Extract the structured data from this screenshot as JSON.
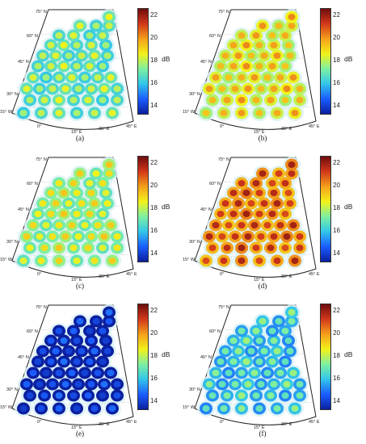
{
  "panels": [
    {
      "label": "(a)",
      "colormap_level": 0.52,
      "unit": "dB",
      "ticks": [
        "22",
        "20",
        "18",
        "16",
        "14"
      ],
      "lat_labels": [
        "75° N",
        "60° N",
        "45° N",
        "30° N",
        "15° W"
      ],
      "lon_labels": [
        "0°",
        "15° E",
        "30° E",
        "45° E"
      ]
    },
    {
      "label": "(b)",
      "colormap_level": 0.7,
      "unit": "dB",
      "ticks": [
        "22",
        "20",
        "18",
        "16",
        "14"
      ],
      "lat_labels": [
        "75° N",
        "60° N",
        "45° N",
        "30° N",
        "15° W"
      ],
      "lon_labels": [
        "0°",
        "15° E",
        "30° E",
        "45° E"
      ]
    },
    {
      "label": "(c)",
      "colormap_level": 0.6,
      "unit": "dB",
      "ticks": [
        "22",
        "20",
        "18",
        "16",
        "14"
      ],
      "lat_labels": [
        "75° N",
        "60° N",
        "45° N",
        "30° N",
        "15° W"
      ],
      "lon_labels": [
        "0°",
        "15° E",
        "30° E",
        "45° E"
      ]
    },
    {
      "label": "(d)",
      "colormap_level": 0.88,
      "unit": "dB",
      "ticks": [
        "22",
        "20",
        "18",
        "16",
        "14"
      ],
      "lat_labels": [
        "75° N",
        "60° N",
        "45° N",
        "30° N",
        "15° W"
      ],
      "lon_labels": [
        "0°",
        "15° E",
        "30° E",
        "45° E"
      ]
    },
    {
      "label": "(e)",
      "colormap_level": 0.12,
      "unit": "dB",
      "ticks": [
        "22",
        "20",
        "18",
        "16",
        "14"
      ],
      "lat_labels": [
        "75° N",
        "60° N",
        "45° N",
        "30° N",
        "15° W"
      ],
      "lon_labels": [
        "0°",
        "15° E",
        "30° E",
        "45° E"
      ]
    },
    {
      "label": "(f)",
      "colormap_level": 0.42,
      "unit": "dB",
      "ticks": [
        "22",
        "20",
        "18",
        "16",
        "14"
      ],
      "lat_labels": [
        "75° N",
        "60° N",
        "45° N",
        "30° N",
        "15° W"
      ],
      "lon_labels": [
        "0°",
        "15° E",
        "30° E",
        "45° E"
      ]
    }
  ],
  "colors": {
    "colormap": [
      "#0b1f9e",
      "#1a5cff",
      "#33c8e8",
      "#7ff0a0",
      "#f2f21a",
      "#f5a21a",
      "#d2371a",
      "#6e0d0d"
    ],
    "halo": "#d8f0f6",
    "border": "#222222"
  }
}
